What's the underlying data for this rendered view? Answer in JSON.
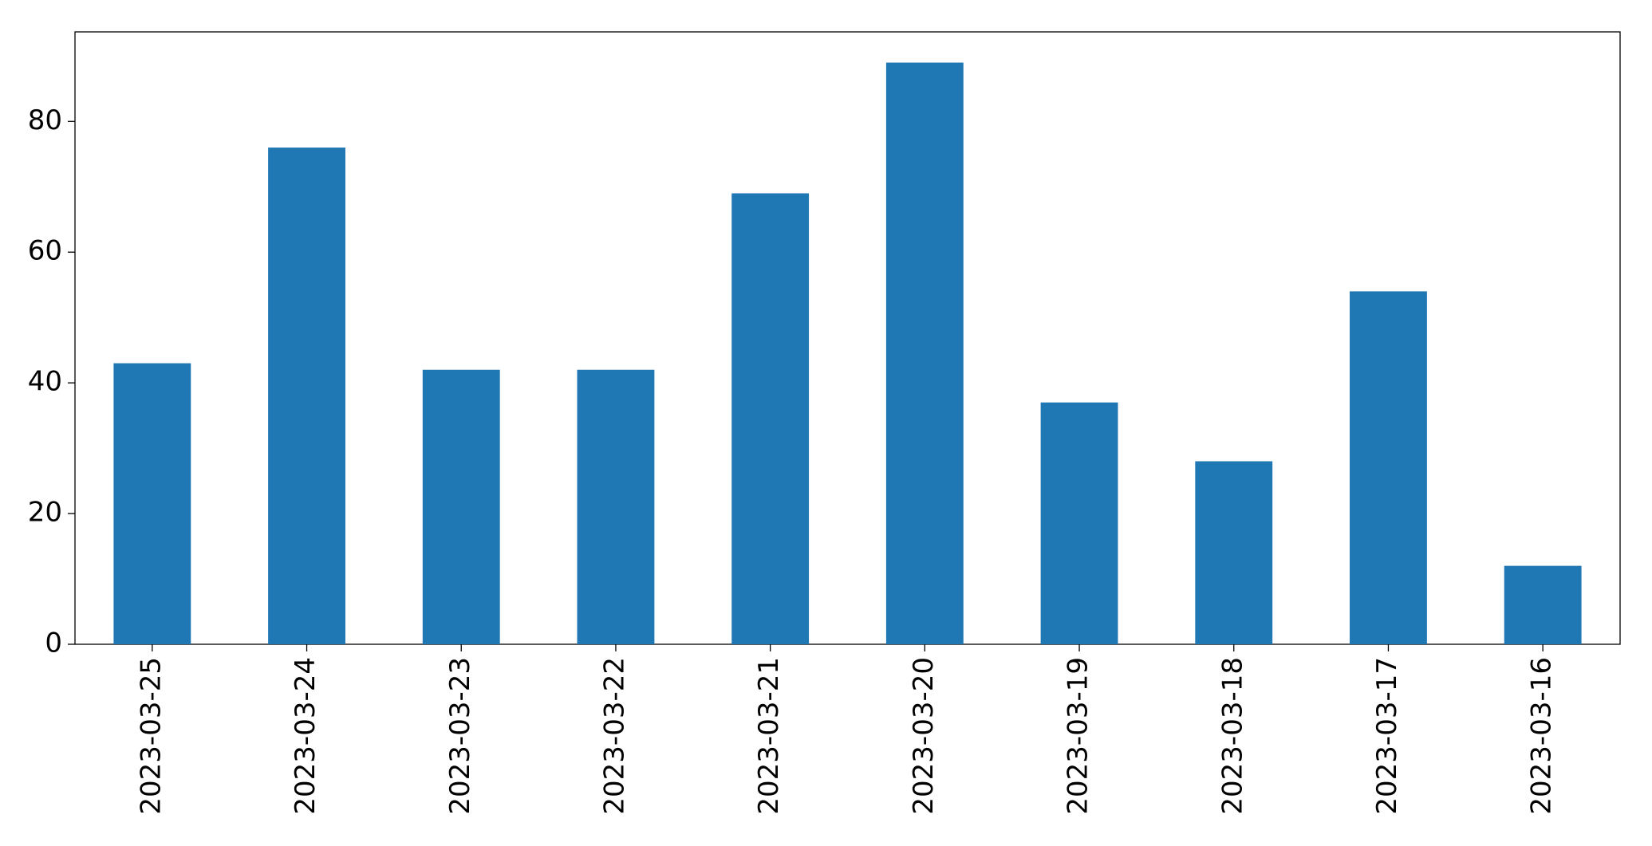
{
  "chart_data": {
    "type": "bar",
    "categories": [
      "2023-03-25",
      "2023-03-24",
      "2023-03-23",
      "2023-03-22",
      "2023-03-21",
      "2023-03-20",
      "2023-03-19",
      "2023-03-18",
      "2023-03-17",
      "2023-03-16"
    ],
    "values": [
      43,
      76,
      42,
      42,
      69,
      89,
      37,
      28,
      54,
      12
    ],
    "color": "#1f77b4",
    "ylim": [
      0,
      93.7
    ],
    "yticks": [
      0,
      20,
      40,
      60,
      80
    ],
    "grid": false
  }
}
